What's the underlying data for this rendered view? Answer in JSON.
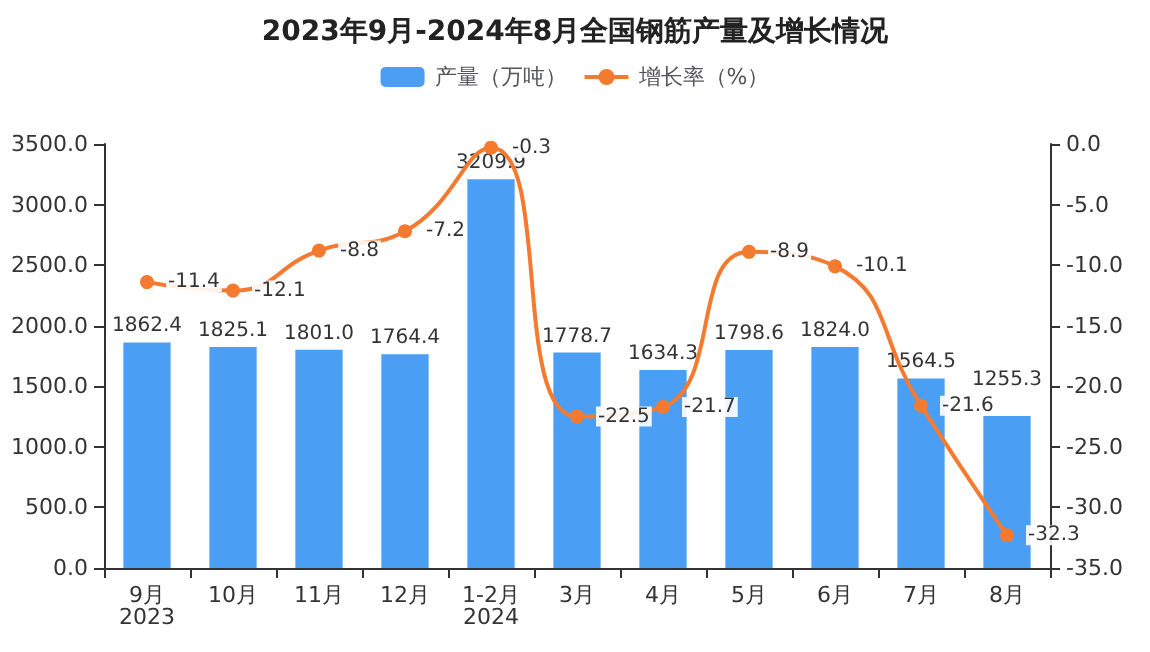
{
  "chart_data": {
    "type": "bar",
    "title": "2023年9月-2024年8月全国钢筋产量及增长情况",
    "categories": [
      "9月\n2023",
      "10月",
      "11月",
      "12月",
      "1-2月\n2024",
      "3月",
      "4月",
      "5月",
      "6月",
      "7月",
      "8月"
    ],
    "series": [
      {
        "name": "产量（万吨）",
        "color": "#4a9ff5",
        "values": [
          1862.4,
          1825.1,
          1801.0,
          1764.4,
          3209.9,
          1778.7,
          1634.3,
          1798.6,
          1824.0,
          1564.5,
          1255.3
        ],
        "value_labels": [
          "1862.4",
          "1825.1",
          "1801.0",
          "1764.4",
          "3209.9",
          "1778.7",
          "1634.3",
          "1798.6",
          "1824.0",
          "1564.5",
          "1255.3"
        ]
      },
      {
        "name": "增长率（%）",
        "type": "line",
        "axis": "y2",
        "color": "#f47a30",
        "values": [
          -11.4,
          -12.1,
          -8.8,
          -7.2,
          -0.3,
          -22.5,
          -21.7,
          -8.9,
          -10.1,
          -21.6,
          -32.3
        ],
        "value_labels": [
          "-11.4",
          "-12.1",
          "-8.8",
          "-7.2",
          "-0.3",
          "-22.5",
          "-21.7",
          "-8.9",
          "-10.1",
          "-21.6",
          "-32.3"
        ]
      }
    ],
    "ylim": [
      0,
      3500
    ],
    "yticks": [
      {
        "value": 0,
        "label": "0.0"
      },
      {
        "value": 500,
        "label": "500.0"
      },
      {
        "value": 1000,
        "label": "1000.0"
      },
      {
        "value": 1500,
        "label": "1500.0"
      },
      {
        "value": 2000,
        "label": "2000.0"
      },
      {
        "value": 2500,
        "label": "2500.0"
      },
      {
        "value": 3000,
        "label": "3000.0"
      },
      {
        "value": 3500,
        "label": "3500.0"
      }
    ],
    "y2lim": [
      -35,
      0
    ],
    "y2ticks": [
      {
        "value": -35,
        "label": "-35.0"
      },
      {
        "value": -30,
        "label": "-30.0"
      },
      {
        "value": -25,
        "label": "-25.0"
      },
      {
        "value": -20,
        "label": "-20.0"
      },
      {
        "value": -15,
        "label": "-15.0"
      },
      {
        "value": -10,
        "label": "-10.0"
      },
      {
        "value": -5,
        "label": "-5.0"
      },
      {
        "value": 0,
        "label": "0.0"
      }
    ],
    "legend": "top",
    "marker": "circle",
    "grid": false
  }
}
